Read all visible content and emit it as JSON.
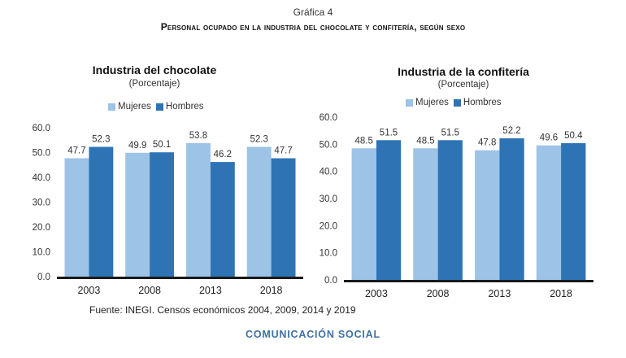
{
  "figure_label": "Gráfica 4",
  "title": "Personal ocupado en la industria del chocolate y confitería, según sexo",
  "source": "Fuente: INEGI. Censos económicos 2004, 2009, 2014 y 2019",
  "footer": "COMUNICACIÓN SOCIAL",
  "colors": {
    "mujeres": "#9dc3e6",
    "hombres": "#2e74b5",
    "axis": "#1a1a1a"
  },
  "chart_data": [
    {
      "type": "bar",
      "title": "Industria del chocolate",
      "subtitle": "(Porcentaje)",
      "categories": [
        "2003",
        "2008",
        "2013",
        "2018"
      ],
      "series": [
        {
          "name": "Mujeres",
          "values": [
            47.7,
            49.9,
            53.8,
            52.3
          ]
        },
        {
          "name": "Hombres",
          "values": [
            52.3,
            50.1,
            46.2,
            47.7
          ]
        }
      ],
      "ylim": [
        0,
        60
      ],
      "yticks": [
        "0.0",
        "10.0",
        "20.0",
        "30.0",
        "40.0",
        "50.0",
        "60.0"
      ],
      "legend": "top",
      "grid": false
    },
    {
      "type": "bar",
      "title": "Industria de la confitería",
      "subtitle": "(Porcentaje)",
      "categories": [
        "2003",
        "2008",
        "2013",
        "2018"
      ],
      "series": [
        {
          "name": "Mujeres",
          "values": [
            48.5,
            48.5,
            47.8,
            49.6
          ]
        },
        {
          "name": "Hombres",
          "values": [
            51.5,
            51.5,
            52.2,
            50.4
          ]
        }
      ],
      "ylim": [
        0,
        60
      ],
      "yticks": [
        "0.0",
        "10.0",
        "20.0",
        "30.0",
        "40.0",
        "50.0",
        "60.0"
      ],
      "legend": "top",
      "grid": false
    }
  ]
}
